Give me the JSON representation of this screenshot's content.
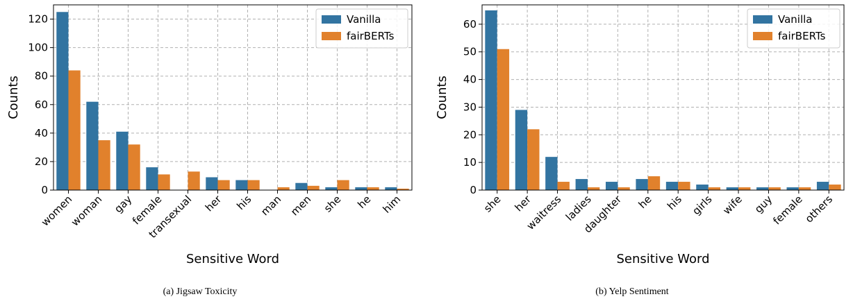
{
  "chart_data": [
    {
      "type": "bar",
      "caption": "(a) Jigsaw Toxicity",
      "xlabel": "Sensitive Word",
      "ylabel": "Counts",
      "ylim": [
        0,
        130
      ],
      "yticks": [
        0,
        20,
        40,
        60,
        80,
        100,
        120
      ],
      "grid": true,
      "legend_position": "top-right",
      "categories": [
        "women",
        "woman",
        "gay",
        "female",
        "transexual",
        "her",
        "his",
        "man",
        "men",
        "she",
        "he",
        "him"
      ],
      "series": [
        {
          "name": "Vanilla",
          "color": "#3274a1",
          "values": [
            125,
            62,
            41,
            16,
            0,
            9,
            7,
            0,
            5,
            2,
            2,
            2
          ]
        },
        {
          "name": "fairBERTs",
          "color": "#e1812c",
          "values": [
            84,
            35,
            32,
            11,
            13,
            7,
            7,
            2,
            3,
            7,
            2,
            1
          ]
        }
      ]
    },
    {
      "type": "bar",
      "caption": "(b) Yelp Sentiment",
      "xlabel": "Sensitive Word",
      "ylabel": "Counts",
      "ylim": [
        0,
        67
      ],
      "yticks": [
        0,
        10,
        20,
        30,
        40,
        50,
        60
      ],
      "grid": true,
      "legend_position": "top-right",
      "categories": [
        "she",
        "her",
        "waitress",
        "ladies",
        "daughter",
        "he",
        "his",
        "girls",
        "wife",
        "guy",
        "female",
        "others"
      ],
      "series": [
        {
          "name": "Vanilla",
          "color": "#3274a1",
          "values": [
            65,
            29,
            12,
            4,
            3,
            4,
            3,
            2,
            1,
            1,
            1,
            3
          ]
        },
        {
          "name": "fairBERTs",
          "color": "#e1812c",
          "values": [
            51,
            22,
            3,
            1,
            1,
            5,
            3,
            1,
            1,
            1,
            1,
            2
          ]
        }
      ]
    }
  ]
}
